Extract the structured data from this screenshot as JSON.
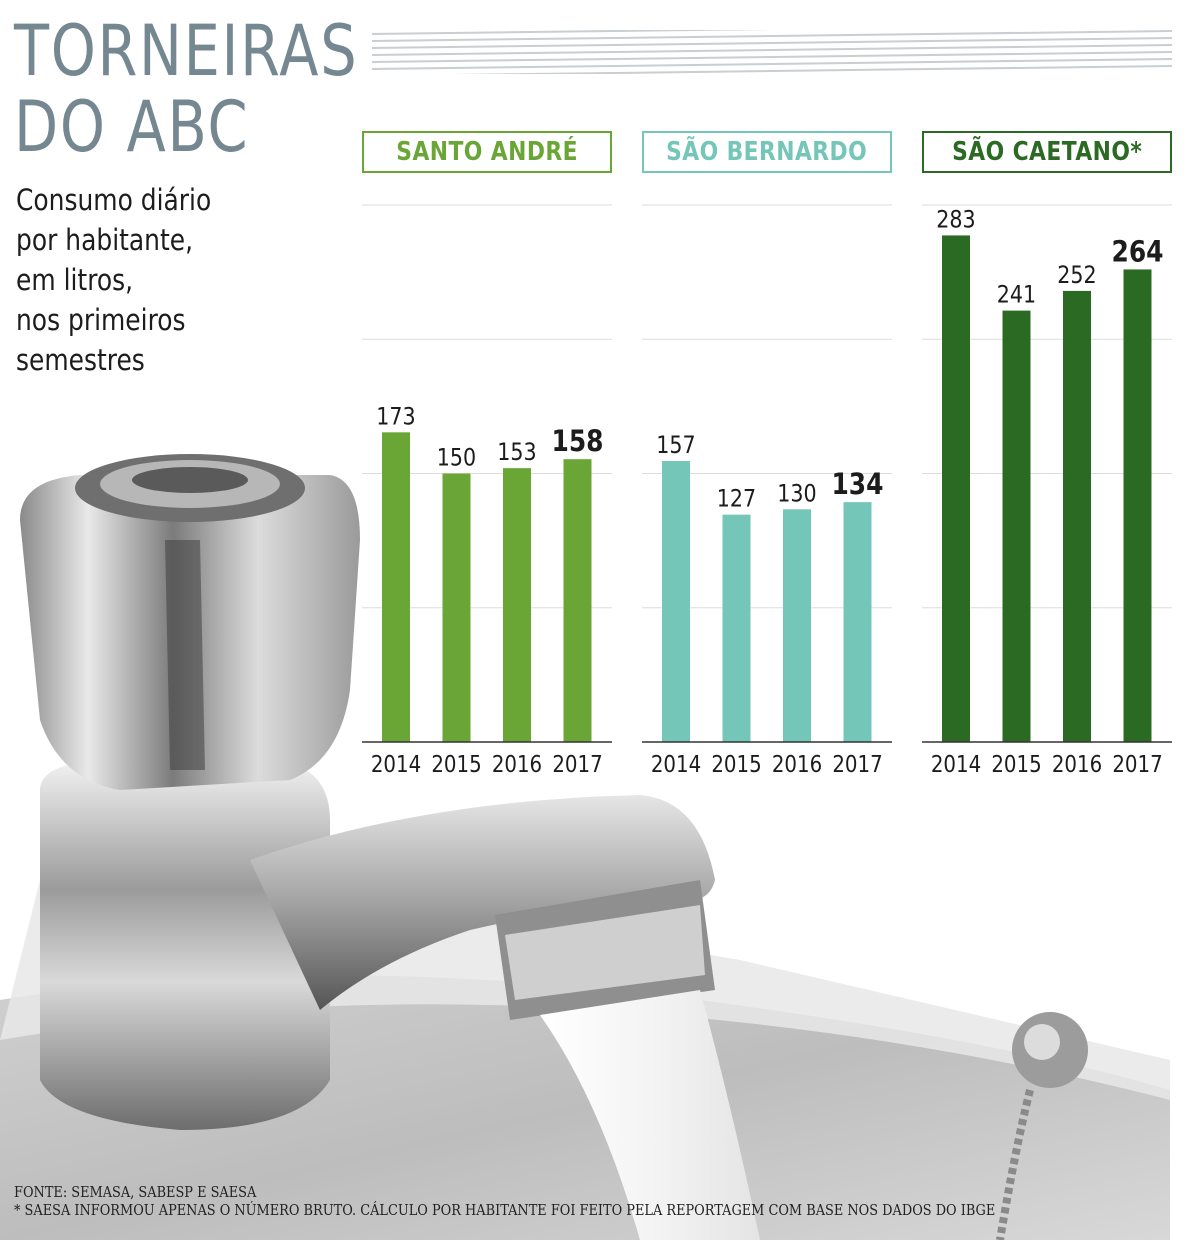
{
  "title": {
    "line1": "TORNEIRAS",
    "line2": "DO ABC"
  },
  "subtitle": [
    "Consumo diário",
    "por habitante,",
    "em litros,",
    "nos primeiros",
    "semestres"
  ],
  "colors": {
    "santo_andre": "#6aa636",
    "sao_bernardo": "#73c6b8",
    "sao_caetano": "#2b6a22",
    "title": "#758791",
    "gridline": "#dddddd"
  },
  "chart_data": [
    {
      "type": "bar",
      "title": "SANTO ANDRÉ",
      "categories": [
        "2014",
        "2015",
        "2016",
        "2017"
      ],
      "values": [
        173,
        150,
        153,
        158
      ],
      "highlight": "2017",
      "ylim": [
        0,
        300
      ],
      "grid": true
    },
    {
      "type": "bar",
      "title": "SÃO BERNARDO",
      "categories": [
        "2014",
        "2015",
        "2016",
        "2017"
      ],
      "values": [
        157,
        127,
        130,
        134
      ],
      "highlight": "2017",
      "ylim": [
        0,
        300
      ],
      "grid": true
    },
    {
      "type": "bar",
      "title": "SÃO CAETANO*",
      "categories": [
        "2014",
        "2015",
        "2016",
        "2017"
      ],
      "values": [
        283,
        241,
        252,
        264
      ],
      "highlight": "2017",
      "ylim": [
        0,
        300
      ],
      "grid": true
    }
  ],
  "source": "FONTE: SEMASA, SABESP E SAESA",
  "footnote": "* SAESA INFORMOU APENAS O NÚMERO BRUTO. CÁLCULO POR  HABITANTE FOI FEITO PELA REPORTAGEM COM BASE NOS DADOS DO IBGE"
}
